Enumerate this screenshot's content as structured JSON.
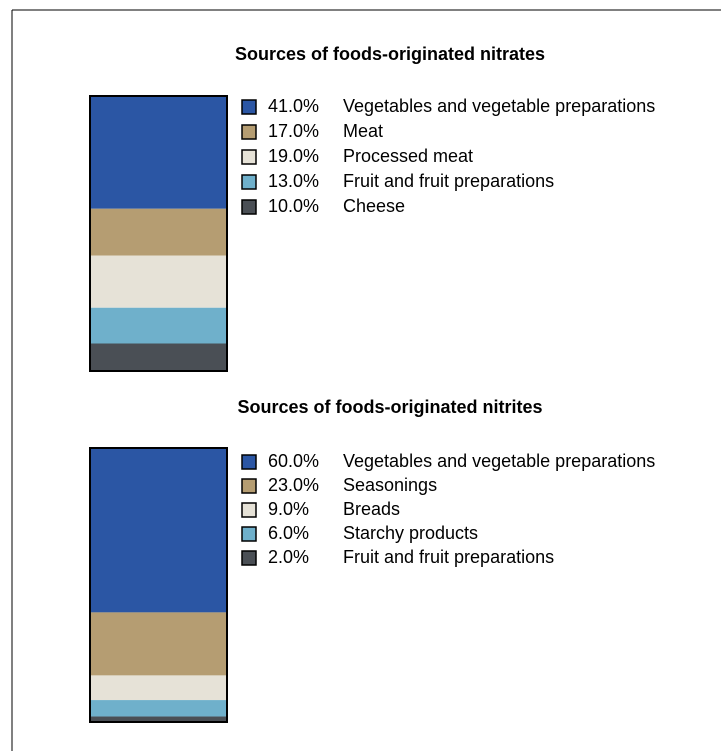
{
  "chart_data": [
    {
      "type": "stacked_bar",
      "title": "Sources of foods-originated nitrates",
      "series": [
        {
          "name": "Vegetables and vegetable preparations",
          "color": "#2b56a4",
          "values": [
            41
          ],
          "value_labels": [
            "41.0%"
          ]
        },
        {
          "name": "Meat",
          "color": "#b59d72",
          "values": [
            17
          ],
          "value_labels": [
            "17.0%"
          ]
        },
        {
          "name": "Processed meat",
          "color": "#e6e2d7",
          "values": [
            19
          ],
          "value_labels": [
            "19.0%"
          ]
        },
        {
          "name": "Fruit and fruit preparations",
          "color": "#6fb0cb",
          "values": [
            13
          ],
          "value_labels": [
            "13.0%"
          ]
        },
        {
          "name": "Cheese",
          "color": "#4a4f55",
          "values": [
            10
          ],
          "value_labels": [
            "10.0%"
          ]
        }
      ]
    },
    {
      "type": "stacked_bar",
      "title": "Sources of foods-originated nitrites",
      "series": [
        {
          "name": "Vegetables and vegetable preparations",
          "color": "#2b56a4",
          "values": [
            60
          ],
          "value_labels": [
            "60.0%"
          ]
        },
        {
          "name": "Seasonings",
          "color": "#b59d72",
          "values": [
            23
          ],
          "value_labels": [
            "23.0%"
          ]
        },
        {
          "name": "Breads",
          "color": "#e6e2d7",
          "values": [
            9
          ],
          "value_labels": [
            "9.0%"
          ]
        },
        {
          "name": "Starchy products",
          "color": "#6fb0cb",
          "values": [
            6
          ],
          "value_labels": [
            "6.0%"
          ]
        },
        {
          "name": "Fruit and fruit preparations",
          "color": "#4a4f55",
          "values": [
            2
          ],
          "value_labels": [
            "2.0%"
          ]
        }
      ]
    }
  ]
}
